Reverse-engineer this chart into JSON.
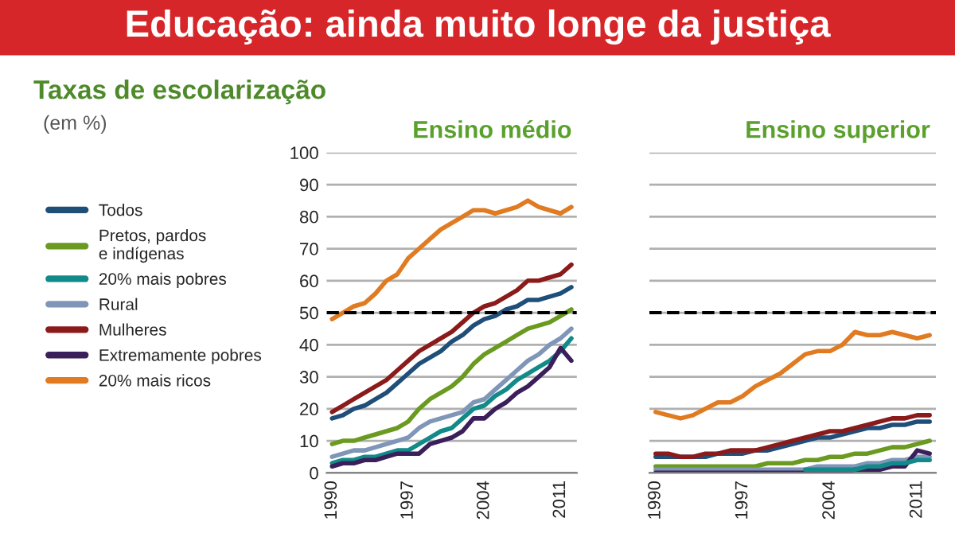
{
  "chart_data": [
    {
      "type": "line",
      "title": "Educação: ainda muito longe da justiça",
      "subtitle": "Taxas de escolarização",
      "annotations": [
        "(em %)",
        "Ensino médio"
      ],
      "x": [
        1990,
        1991,
        1992,
        1993,
        1994,
        1995,
        1996,
        1997,
        1998,
        1999,
        2000,
        2001,
        2002,
        2003,
        2004,
        2005,
        2006,
        2007,
        2008,
        2009,
        2010,
        2011,
        2012
      ],
      "xlim": [
        1989.5,
        2012.5
      ],
      "xticks": [
        1990,
        1997,
        2004,
        2011
      ],
      "ylim": [
        0,
        100
      ],
      "yticks": [
        0,
        10,
        20,
        30,
        40,
        50,
        60,
        70,
        80,
        90,
        100
      ],
      "grid": "y",
      "legend": "left",
      "marker": "none",
      "line_style": "solid",
      "ref_lines": [
        {
          "axis": "y",
          "value": 50,
          "label": null,
          "color": "#000000",
          "line_style": "dashed"
        }
      ],
      "series": [
        {
          "name": "Todos",
          "color": "#1f4e79",
          "values": [
            17,
            18,
            20,
            21,
            23,
            25,
            28,
            31,
            34,
            36,
            38,
            41,
            43,
            46,
            48,
            49,
            51,
            52,
            54,
            54,
            55,
            56,
            58
          ]
        },
        {
          "name": "Pretos, pardos\ne indígenas",
          "color": "#6a9a1f",
          "values": [
            9,
            10,
            10,
            11,
            12,
            13,
            14,
            16,
            20,
            23,
            25,
            27,
            30,
            34,
            37,
            39,
            41,
            43,
            45,
            46,
            47,
            49,
            51
          ]
        },
        {
          "name": "20% mais pobres",
          "color": "#138a8a",
          "values": [
            3,
            4,
            4,
            5,
            5,
            6,
            7,
            7,
            9,
            11,
            13,
            14,
            17,
            20,
            21,
            24,
            26,
            29,
            31,
            33,
            35,
            38,
            42
          ]
        },
        {
          "name": "Rural",
          "color": "#7f96b8",
          "values": [
            5,
            6,
            7,
            7,
            8,
            9,
            10,
            11,
            14,
            16,
            17,
            18,
            19,
            22,
            23,
            26,
            29,
            32,
            35,
            37,
            40,
            42,
            45
          ]
        },
        {
          "name": "Mulheres",
          "color": "#8b1a1a",
          "values": [
            19,
            21,
            23,
            25,
            27,
            29,
            32,
            35,
            38,
            40,
            42,
            44,
            47,
            50,
            52,
            53,
            55,
            57,
            60,
            60,
            61,
            62,
            65
          ]
        },
        {
          "name": "Extremamente pobres",
          "color": "#3b1f5a",
          "values": [
            2,
            3,
            3,
            4,
            4,
            5,
            6,
            6,
            6,
            9,
            10,
            11,
            13,
            17,
            17,
            20,
            22,
            25,
            27,
            30,
            33,
            39,
            35
          ]
        },
        {
          "name": "20% mais ricos",
          "color": "#e07b22",
          "values": [
            48,
            50,
            52,
            53,
            56,
            60,
            62,
            67,
            70,
            73,
            76,
            78,
            80,
            82,
            82,
            81,
            82,
            83,
            85,
            83,
            82,
            81,
            83
          ]
        }
      ]
    },
    {
      "type": "line",
      "annotations": [
        "Ensino superior"
      ],
      "x": [
        1990,
        1991,
        1992,
        1993,
        1994,
        1995,
        1996,
        1997,
        1998,
        1999,
        2000,
        2001,
        2002,
        2003,
        2004,
        2005,
        2006,
        2007,
        2008,
        2009,
        2010,
        2011,
        2012
      ],
      "xlim": [
        1989.5,
        2012.5
      ],
      "xticks": [
        1990,
        1997,
        2004,
        2011
      ],
      "ylim": [
        0,
        100
      ],
      "tick_labels": "x",
      "grid": "y",
      "marker": "none",
      "line_style": "solid",
      "ref_lines": [
        {
          "axis": "y",
          "value": 50,
          "label": null,
          "color": "#000000",
          "line_style": "dashed"
        }
      ],
      "series": [
        {
          "color": "#1f4e79",
          "values": [
            5,
            5,
            5,
            5,
            5,
            6,
            6,
            6,
            7,
            7,
            8,
            9,
            10,
            11,
            11,
            12,
            13,
            14,
            14,
            15,
            15,
            16,
            16
          ]
        },
        {
          "color": "#6a9a1f",
          "values": [
            2,
            2,
            2,
            2,
            2,
            2,
            2,
            2,
            2,
            3,
            3,
            3,
            4,
            4,
            5,
            5,
            6,
            6,
            7,
            8,
            8,
            9,
            10
          ]
        },
        {
          "color": "#7f96b8",
          "values": [
            1,
            1,
            1,
            1,
            1,
            1,
            1,
            1,
            1,
            1,
            1,
            1,
            1,
            2,
            2,
            2,
            2,
            3,
            3,
            4,
            4,
            5,
            5
          ]
        },
        {
          "color": "#8b1a1a",
          "values": [
            6,
            6,
            5,
            5,
            6,
            6,
            7,
            7,
            7,
            8,
            9,
            10,
            11,
            12,
            13,
            13,
            14,
            15,
            16,
            17,
            17,
            18,
            18
          ]
        },
        {
          "color": "#3b1f5a",
          "values": [
            0,
            0,
            0,
            0,
            0,
            0,
            0,
            0,
            0,
            0,
            0,
            0,
            0,
            0,
            0,
            0,
            1,
            1,
            1,
            2,
            2,
            7,
            6
          ]
        },
        {
          "color": "#138a8a",
          "values": [
            null,
            null,
            null,
            null,
            null,
            null,
            null,
            null,
            null,
            null,
            null,
            null,
            1,
            1,
            1,
            1,
            1,
            2,
            2,
            3,
            3,
            4,
            4
          ]
        },
        {
          "color": "#e07b22",
          "values": [
            19,
            18,
            17,
            18,
            20,
            22,
            22,
            24,
            27,
            29,
            31,
            34,
            37,
            38,
            38,
            40,
            44,
            43,
            43,
            44,
            43,
            42,
            43
          ]
        }
      ]
    }
  ]
}
